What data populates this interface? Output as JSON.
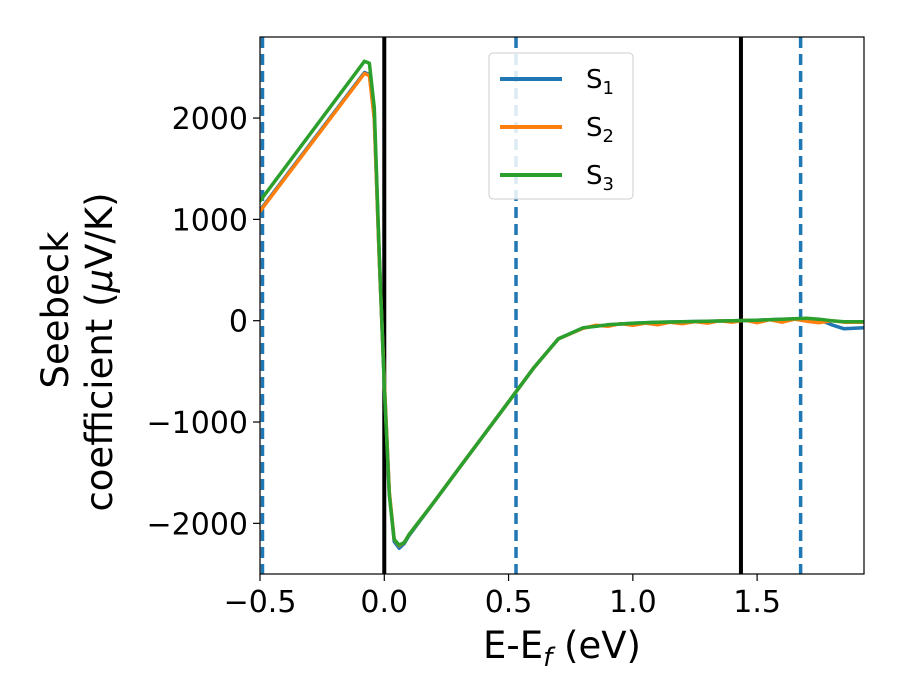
{
  "chart_data": {
    "type": "line",
    "xlabel_main": "E-E",
    "xlabel_sub": "f",
    "xlabel_unit": " (eV)",
    "ylabel_line1": "Seebeck",
    "ylabel_line2_prefix": "coefficient  (",
    "ylabel_mu": "μ",
    "ylabel_line2_suffix": "V/K)",
    "xlim": [
      -0.5,
      1.93
    ],
    "ylim": [
      -2500,
      2800
    ],
    "xticks": [
      {
        "value": -0.5,
        "label": "−0.5"
      },
      {
        "value": 0.0,
        "label": "0.0"
      },
      {
        "value": 0.5,
        "label": "0.5"
      },
      {
        "value": 1.0,
        "label": "1.0"
      },
      {
        "value": 1.5,
        "label": "1.5"
      }
    ],
    "yticks": [
      {
        "value": -2000,
        "label": "−2000"
      },
      {
        "value": -1000,
        "label": "−1000"
      },
      {
        "value": 0,
        "label": "0"
      },
      {
        "value": 1000,
        "label": "1000"
      },
      {
        "value": 2000,
        "label": "2000"
      }
    ],
    "grid": false,
    "legend_position": "top-center",
    "vlines": [
      {
        "x": 0.0,
        "style": "solid",
        "color": "#000000"
      },
      {
        "x": 1.435,
        "style": "solid",
        "color": "#000000"
      },
      {
        "x": -0.49,
        "style": "dashed",
        "color": "#1f77b4"
      },
      {
        "x": 0.53,
        "style": "dashed",
        "color": "#1f77b4"
      },
      {
        "x": 1.675,
        "style": "dashed",
        "color": "#1f77b4"
      }
    ],
    "series": [
      {
        "name_main": "S",
        "name_sub": "1",
        "color": "#1f77b4",
        "points": [
          [
            -0.5,
            1090
          ],
          [
            -0.08,
            2450
          ],
          [
            -0.06,
            2430
          ],
          [
            -0.04,
            2000
          ],
          [
            -0.02,
            600
          ],
          [
            0.0,
            -600
          ],
          [
            0.02,
            -1700
          ],
          [
            0.04,
            -2180
          ],
          [
            0.06,
            -2245
          ],
          [
            0.08,
            -2200
          ],
          [
            0.1,
            -2120
          ],
          [
            0.2,
            -1790
          ],
          [
            0.3,
            -1460
          ],
          [
            0.4,
            -1130
          ],
          [
            0.5,
            -800
          ],
          [
            0.6,
            -470
          ],
          [
            0.7,
            -180
          ],
          [
            0.8,
            -70
          ],
          [
            0.9,
            -40
          ],
          [
            1.0,
            -25
          ],
          [
            1.1,
            -15
          ],
          [
            1.2,
            -10
          ],
          [
            1.3,
            -5
          ],
          [
            1.4,
            0
          ],
          [
            1.5,
            5
          ],
          [
            1.6,
            15
          ],
          [
            1.7,
            20
          ],
          [
            1.75,
            10
          ],
          [
            1.8,
            -40
          ],
          [
            1.85,
            -80
          ],
          [
            1.93,
            -70
          ]
        ]
      },
      {
        "name_main": "S",
        "name_sub": "2",
        "color": "#ff7f0e",
        "points": [
          [
            -0.5,
            1080
          ],
          [
            -0.08,
            2440
          ],
          [
            -0.06,
            2420
          ],
          [
            -0.04,
            1990
          ],
          [
            -0.02,
            600
          ],
          [
            0.0,
            -600
          ],
          [
            0.02,
            -1690
          ],
          [
            0.04,
            -2160
          ],
          [
            0.06,
            -2220
          ],
          [
            0.08,
            -2190
          ],
          [
            0.1,
            -2110
          ],
          [
            0.2,
            -1790
          ],
          [
            0.3,
            -1460
          ],
          [
            0.4,
            -1130
          ],
          [
            0.5,
            -800
          ],
          [
            0.6,
            -470
          ],
          [
            0.7,
            -180
          ],
          [
            0.8,
            -75
          ],
          [
            0.85,
            -45
          ],
          [
            0.9,
            -55
          ],
          [
            0.95,
            -30
          ],
          [
            1.0,
            -45
          ],
          [
            1.05,
            -25
          ],
          [
            1.1,
            -40
          ],
          [
            1.15,
            -15
          ],
          [
            1.2,
            -30
          ],
          [
            1.25,
            -10
          ],
          [
            1.3,
            -25
          ],
          [
            1.35,
            0
          ],
          [
            1.4,
            -15
          ],
          [
            1.45,
            5
          ],
          [
            1.5,
            -20
          ],
          [
            1.55,
            10
          ],
          [
            1.6,
            -15
          ],
          [
            1.65,
            15
          ],
          [
            1.7,
            -5
          ],
          [
            1.75,
            -20
          ],
          [
            1.8,
            0
          ],
          [
            1.85,
            -15
          ],
          [
            1.93,
            -15
          ]
        ]
      },
      {
        "name_main": "S",
        "name_sub": "3",
        "color": "#2ca02c",
        "points": [
          [
            -0.5,
            1180
          ],
          [
            -0.08,
            2560
          ],
          [
            -0.06,
            2540
          ],
          [
            -0.04,
            2100
          ],
          [
            -0.02,
            650
          ],
          [
            0.0,
            -650
          ],
          [
            0.02,
            -1720
          ],
          [
            0.04,
            -2160
          ],
          [
            0.06,
            -2215
          ],
          [
            0.08,
            -2190
          ],
          [
            0.1,
            -2110
          ],
          [
            0.2,
            -1790
          ],
          [
            0.3,
            -1460
          ],
          [
            0.4,
            -1130
          ],
          [
            0.5,
            -800
          ],
          [
            0.6,
            -470
          ],
          [
            0.7,
            -180
          ],
          [
            0.8,
            -70
          ],
          [
            0.9,
            -40
          ],
          [
            1.0,
            -25
          ],
          [
            1.1,
            -15
          ],
          [
            1.2,
            -10
          ],
          [
            1.3,
            -5
          ],
          [
            1.4,
            0
          ],
          [
            1.5,
            5
          ],
          [
            1.6,
            15
          ],
          [
            1.7,
            25
          ],
          [
            1.75,
            15
          ],
          [
            1.8,
            0
          ],
          [
            1.85,
            -10
          ],
          [
            1.93,
            -10
          ]
        ]
      }
    ]
  }
}
